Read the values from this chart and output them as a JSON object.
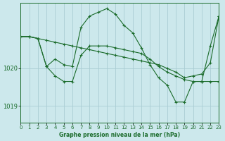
{
  "bg_color": "#cce8ec",
  "line_color": "#1a6b2a",
  "grid_color": "#aacdd4",
  "xlabel": "Graphe pression niveau de la mer (hPa)",
  "xlim": [
    0,
    23
  ],
  "ylim": [
    1018.55,
    1021.75
  ],
  "yticks": [
    1019,
    1020
  ],
  "xticks": [
    0,
    1,
    2,
    3,
    4,
    5,
    6,
    7,
    8,
    9,
    10,
    11,
    12,
    13,
    14,
    15,
    16,
    17,
    18,
    19,
    20,
    21,
    22,
    23
  ],
  "line1_x": [
    0,
    1,
    2,
    3,
    4,
    5,
    6,
    7,
    8,
    9,
    10,
    11,
    12,
    13,
    14,
    15,
    16,
    17,
    18,
    19,
    20,
    21,
    22,
    23
  ],
  "line1_y": [
    1020.85,
    1020.85,
    1020.8,
    1020.75,
    1020.7,
    1020.65,
    1020.6,
    1020.55,
    1020.5,
    1020.45,
    1020.4,
    1020.35,
    1020.3,
    1020.25,
    1020.2,
    1020.15,
    1020.1,
    1020.0,
    1019.9,
    1019.75,
    1019.8,
    1019.85,
    1020.15,
    1021.4
  ],
  "line2_x": [
    0,
    1,
    2,
    3,
    4,
    5,
    6,
    7,
    8,
    9,
    10,
    11,
    12,
    13,
    14,
    15,
    16,
    17,
    18,
    19,
    20,
    21,
    22,
    23
  ],
  "line2_y": [
    1020.85,
    1020.85,
    1020.8,
    1020.05,
    1020.25,
    1020.1,
    1020.05,
    1021.1,
    1021.4,
    1021.5,
    1021.6,
    1021.45,
    1021.15,
    1020.95,
    1020.55,
    1020.1,
    1019.75,
    1019.55,
    1019.1,
    1019.1,
    1019.65,
    1019.65,
    1020.6,
    1021.4
  ],
  "line3_x": [
    0,
    1,
    2,
    3,
    4,
    5,
    6,
    7,
    8,
    9,
    10,
    11,
    12,
    13,
    14,
    15,
    16,
    17,
    18,
    19,
    20,
    21,
    22,
    23
  ],
  "line3_y": [
    1020.85,
    1020.85,
    1020.8,
    1020.05,
    1019.8,
    1019.65,
    1019.65,
    1020.35,
    1020.6,
    1020.6,
    1020.6,
    1020.55,
    1020.5,
    1020.45,
    1020.4,
    1020.25,
    1020.05,
    1019.9,
    1019.8,
    1019.7,
    1019.65,
    1019.65,
    1019.65,
    1019.65
  ]
}
